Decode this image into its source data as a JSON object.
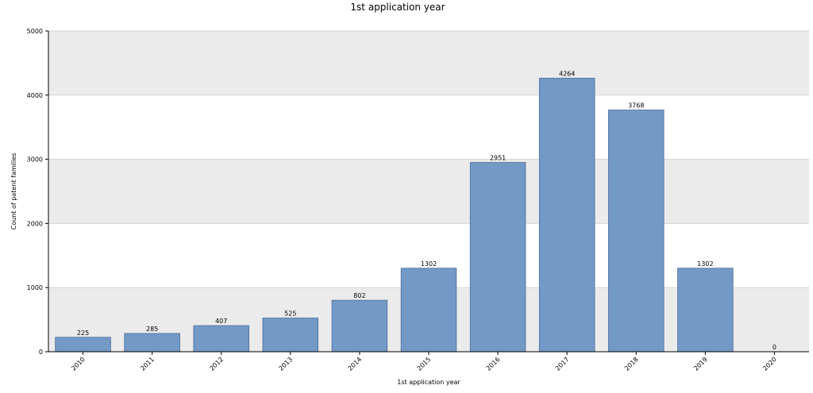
{
  "chart_data": {
    "type": "bar",
    "title": "1st application year",
    "xlabel": "1st application year",
    "ylabel": "Count of patent families",
    "categories": [
      "2010",
      "2011",
      "2012",
      "2013",
      "2014",
      "2015",
      "2016",
      "2017",
      "2018",
      "2019",
      "2020"
    ],
    "values": [
      225,
      285,
      407,
      525,
      802,
      1302,
      2951,
      4264,
      3768,
      1302,
      0
    ],
    "ylim": [
      0,
      5000
    ],
    "yticks": [
      0,
      1000,
      2000,
      3000,
      4000,
      5000
    ],
    "grid": true,
    "legend": "none",
    "colors": {
      "bar_fill": "#7399c6",
      "bar_stroke": "#4a6c9b",
      "band_shaded": "#ebebeb",
      "band_plain": "#ffffff",
      "gridline": "#d6d6d6",
      "axis": "#000000"
    }
  }
}
